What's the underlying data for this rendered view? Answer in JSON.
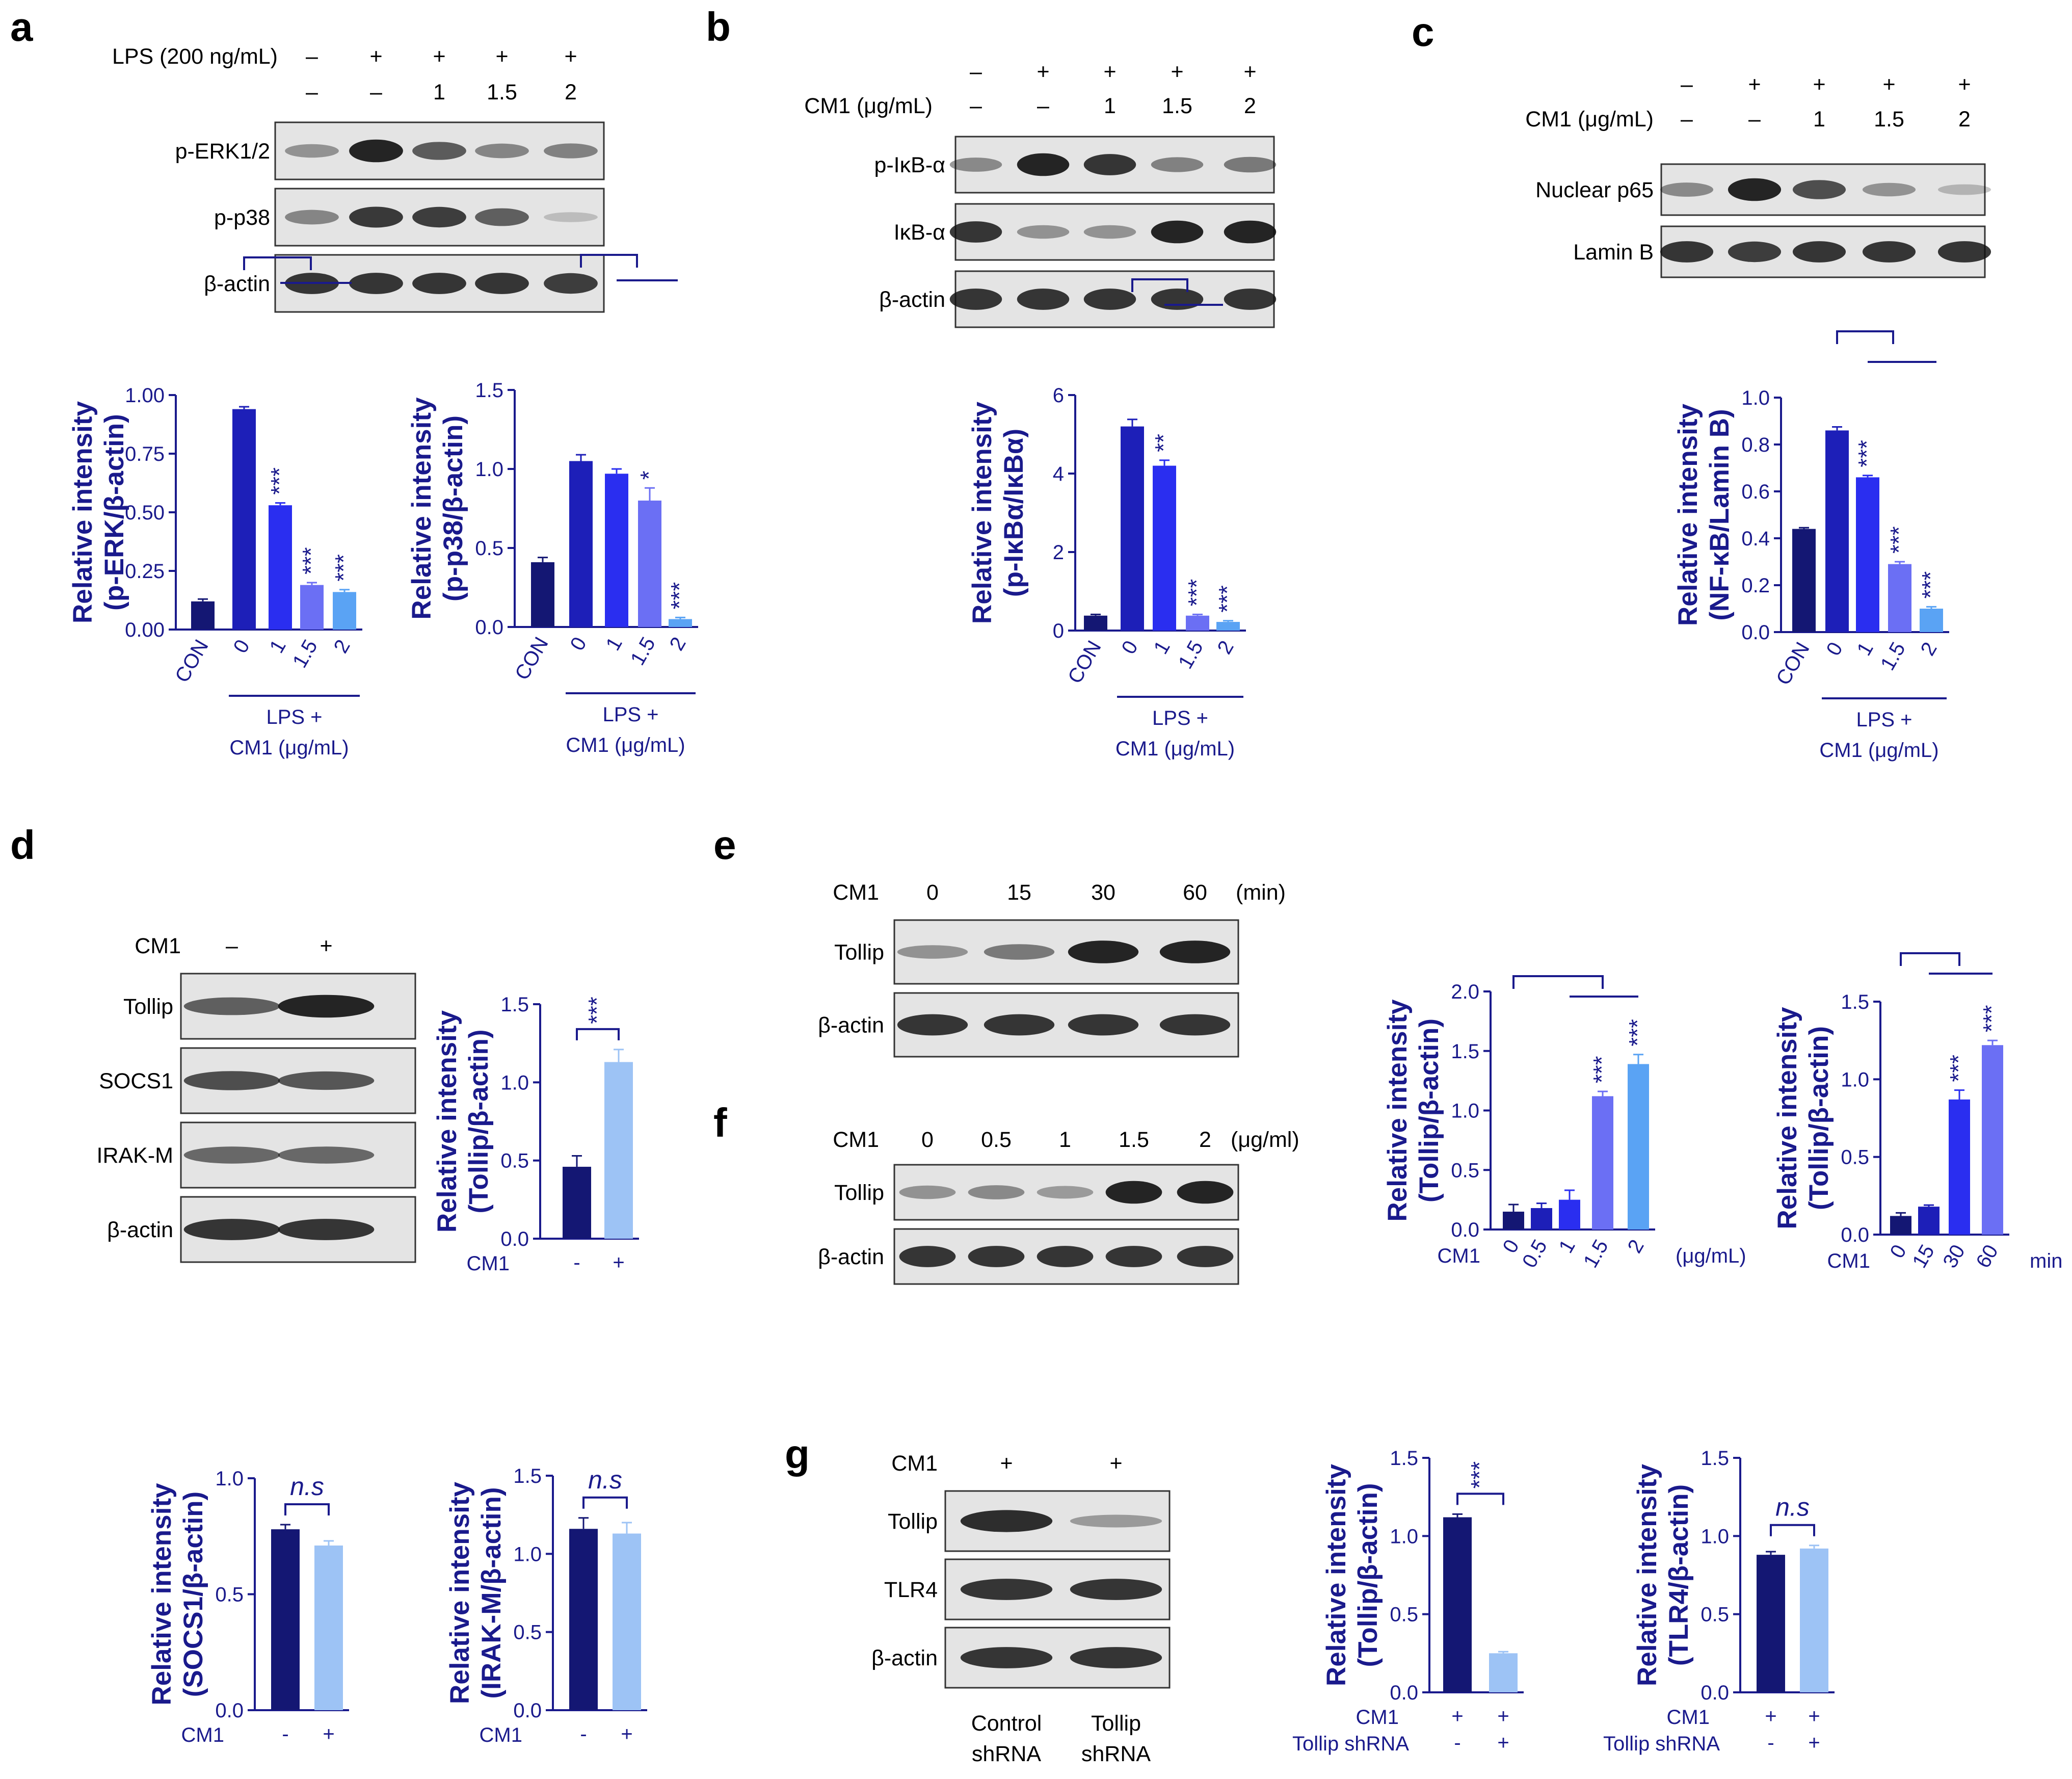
{
  "colors": {
    "axis": "#1a1a8c",
    "text": "#1a1a8c",
    "bars": [
      "#141773",
      "#1d1fb8",
      "#2a2ef0",
      "#6b6ff4",
      "#5aa3f4"
    ],
    "neg": "#141773",
    "pos": "#9dc3f5"
  },
  "panels": {
    "a": "a",
    "b": "b",
    "c": "c",
    "d": "d",
    "e": "e",
    "f": "f",
    "g": "g"
  },
  "blots": [
    {
      "id": "a",
      "header": [
        {
          "label": "LPS (200 ng/mL)",
          "values": [
            "–",
            "+",
            "+",
            "+",
            "+"
          ]
        },
        {
          "label": "",
          "values": [
            "–",
            "–",
            "1",
            "1.5",
            "2"
          ]
        }
      ],
      "rows": [
        "p-ERK1/2",
        "p-p38",
        "β-actin"
      ]
    },
    {
      "id": "b",
      "header": [
        {
          "label": "",
          "values": [
            "–",
            "+",
            "+",
            "+",
            "+"
          ]
        },
        {
          "label": "CM1 (μg/mL)",
          "values": [
            "–",
            "–",
            "1",
            "1.5",
            "2"
          ]
        }
      ],
      "rows": [
        "p-IκB-α",
        "IκB-α",
        "β-actin"
      ]
    },
    {
      "id": "c",
      "header": [
        {
          "label": "",
          "values": [
            "–",
            "+",
            "+",
            "+",
            "+"
          ]
        },
        {
          "label": "CM1 (μg/mL)",
          "values": [
            "–",
            "–",
            "1",
            "1.5",
            "2"
          ]
        }
      ],
      "rows": [
        "Nuclear p65",
        "Lamin B"
      ]
    },
    {
      "id": "d",
      "header": [
        {
          "label": "CM1",
          "values": [
            "–",
            "+"
          ]
        }
      ],
      "rows": [
        "Tollip",
        "SOCS1",
        "IRAK-M",
        "β-actin"
      ]
    },
    {
      "id": "e",
      "header": [
        {
          "label": "CM1",
          "values": [
            "0",
            "15",
            "30",
            "60"
          ],
          "unit": "(min)"
        }
      ],
      "rows": [
        "Tollip",
        "β-actin"
      ]
    },
    {
      "id": "f",
      "header": [
        {
          "label": "CM1",
          "values": [
            "0",
            "0.5",
            "1",
            "1.5",
            "2"
          ],
          "unit": "(μg/ml)"
        }
      ],
      "rows": [
        "Tollip",
        "β-actin"
      ]
    },
    {
      "id": "g",
      "header": [
        {
          "label": "CM1",
          "values": [
            "+",
            "+"
          ]
        }
      ],
      "rows": [
        "Tollip",
        "TLR4",
        "β-actin"
      ],
      "footer": [
        "Control shRNA",
        "Tollip shRNA"
      ]
    }
  ],
  "chart_data": [
    {
      "id": "a1",
      "type": "bar",
      "ylabel": [
        "Relative intensity",
        "(p-ERK/β-actin)"
      ],
      "ylim": [
        0,
        1.0
      ],
      "yticks": [
        "0.00",
        "0.25",
        "0.50",
        "0.75",
        "1.00"
      ],
      "categories": [
        "CON",
        "0",
        "1",
        "1.5",
        "2"
      ],
      "values": [
        0.12,
        0.94,
        0.53,
        0.19,
        0.16
      ],
      "errors": [
        0.01,
        0.01,
        0.01,
        0.01,
        0.01
      ],
      "sig": [
        "",
        "",
        "***",
        "***",
        "***"
      ],
      "group_label": [
        "LPS +",
        "CM1 (μg/mL)"
      ]
    },
    {
      "id": "a2",
      "type": "bar",
      "ylabel": [
        "Relative intensity",
        "(p-p38/β-actin)"
      ],
      "ylim": [
        0,
        1.5
      ],
      "yticks": [
        "0.0",
        "0.5",
        "1.0",
        "1.5"
      ],
      "categories": [
        "CON",
        "0",
        "1",
        "1.5",
        "2"
      ],
      "values": [
        0.41,
        1.05,
        0.97,
        0.8,
        0.05
      ],
      "errors": [
        0.03,
        0.04,
        0.03,
        0.08,
        0.01
      ],
      "sig": [
        "",
        "",
        "",
        "*",
        "***"
      ],
      "group_label": [
        "LPS +",
        "CM1 (μg/mL)"
      ]
    },
    {
      "id": "b1",
      "type": "bar",
      "ylabel": [
        "Relative intensity",
        "(p-IκBα/IκBα)"
      ],
      "ylim": [
        0,
        6
      ],
      "yticks": [
        "0",
        "2",
        "4",
        "6"
      ],
      "categories": [
        "CON",
        "0",
        "1",
        "1.5",
        "2"
      ],
      "values": [
        0.38,
        5.2,
        4.2,
        0.38,
        0.22
      ],
      "errors": [
        0.03,
        0.18,
        0.14,
        0.03,
        0.03
      ],
      "sig": [
        "",
        "",
        "**",
        "***",
        "***"
      ],
      "group_label": [
        "LPS +",
        "CM1 (μg/mL)"
      ]
    },
    {
      "id": "c1",
      "type": "bar",
      "ylabel": [
        "Relative intensity",
        "(NF-κB/Lamin B)"
      ],
      "ylim": [
        0,
        1.0
      ],
      "yticks": [
        "0.0",
        "0.2",
        "0.4",
        "0.6",
        "0.8",
        "1.0"
      ],
      "categories": [
        "CON",
        "0",
        "1",
        "1.5",
        "2"
      ],
      "values": [
        0.44,
        0.86,
        0.66,
        0.29,
        0.1
      ],
      "errors": [
        0.005,
        0.015,
        0.008,
        0.01,
        0.008
      ],
      "sig": [
        "",
        "",
        "***",
        "***",
        "***"
      ],
      "group_label": [
        "LPS +",
        "CM1 (μg/mL)"
      ]
    },
    {
      "id": "d1",
      "type": "bar",
      "ylabel": [
        "Relative intensity",
        "(Tollip/β-actin)"
      ],
      "ylim": [
        0,
        1.5
      ],
      "yticks": [
        "0.0",
        "0.5",
        "1.0",
        "1.5"
      ],
      "categories": [
        "-",
        "+"
      ],
      "cat_title": "CM1",
      "values": [
        0.46,
        1.13
      ],
      "errors": [
        0.07,
        0.08
      ],
      "sig_bracket": "***"
    },
    {
      "id": "e1",
      "type": "bar",
      "ylabel": [
        "Relative intensity",
        "(Tollip/β-actin)"
      ],
      "ylim": [
        0,
        2.0
      ],
      "yticks": [
        "0.0",
        "0.5",
        "1.0",
        "1.5",
        "2.0"
      ],
      "categories": [
        "0",
        "0.5",
        "1",
        "1.5",
        "2"
      ],
      "cat_title": "CM1",
      "unit": "(μg/mL)",
      "values": [
        0.15,
        0.18,
        0.25,
        1.12,
        1.39
      ],
      "errors": [
        0.06,
        0.04,
        0.08,
        0.04,
        0.08
      ],
      "sig": [
        "",
        "",
        "",
        "***",
        "***"
      ]
    },
    {
      "id": "e2",
      "type": "bar",
      "ylabel": [
        "Relative intensity",
        "(Tollip/β-actin)"
      ],
      "ylim": [
        0,
        1.5
      ],
      "yticks": [
        "0.0",
        "0.5",
        "1.0",
        "1.5"
      ],
      "categories": [
        "0",
        "15",
        "30",
        "60"
      ],
      "cat_title": "CM1",
      "unit": "min",
      "values": [
        0.12,
        0.18,
        0.87,
        1.22
      ],
      "errors": [
        0.02,
        0.01,
        0.06,
        0.03
      ],
      "sig": [
        "",
        "",
        "***",
        "***"
      ]
    },
    {
      "id": "d2",
      "type": "bar",
      "ylabel": [
        "Relative intensity",
        "(SOCS1/β-actin)"
      ],
      "ylim": [
        0,
        1.0
      ],
      "yticks": [
        "0.0",
        "0.5",
        "1.0"
      ],
      "categories": [
        "-",
        "+"
      ],
      "cat_title": "CM1",
      "values": [
        0.78,
        0.71
      ],
      "errors": [
        0.02,
        0.02
      ],
      "sig_bracket": "n.s"
    },
    {
      "id": "d3",
      "type": "bar",
      "ylabel": [
        "Relative intensity",
        "(IRAK-M/β-actin)"
      ],
      "ylim": [
        0,
        1.5
      ],
      "yticks": [
        "0.0",
        "0.5",
        "1.0",
        "1.5"
      ],
      "categories": [
        "-",
        "+"
      ],
      "cat_title": "CM1",
      "values": [
        1.16,
        1.13
      ],
      "errors": [
        0.07,
        0.07
      ],
      "sig_bracket": "n.s"
    },
    {
      "id": "g1",
      "type": "bar",
      "ylabel": [
        "Relative intensity",
        "(Tollip/β-actin)"
      ],
      "ylim": [
        0,
        1.5
      ],
      "yticks": [
        "0.0",
        "0.5",
        "1.0",
        "1.5"
      ],
      "categories": [
        "+",
        "+"
      ],
      "cat_title": "CM1",
      "row2_title": "Tollip shRNA",
      "row2": [
        "-",
        "+"
      ],
      "values": [
        1.12,
        0.25
      ],
      "errors": [
        0.02,
        0.01
      ],
      "sig_bracket": "***"
    },
    {
      "id": "g2",
      "type": "bar",
      "ylabel": [
        "Relative intensity",
        "(TLR4/β-actin)"
      ],
      "ylim": [
        0,
        1.5
      ],
      "yticks": [
        "0.0",
        "0.5",
        "1.0",
        "1.5"
      ],
      "categories": [
        "+",
        "+"
      ],
      "cat_title": "CM1",
      "row2_title": "Tollip shRNA",
      "row2": [
        "-",
        "+"
      ],
      "values": [
        0.88,
        0.92
      ],
      "errors": [
        0.02,
        0.02
      ],
      "sig_bracket": "n.s"
    }
  ]
}
